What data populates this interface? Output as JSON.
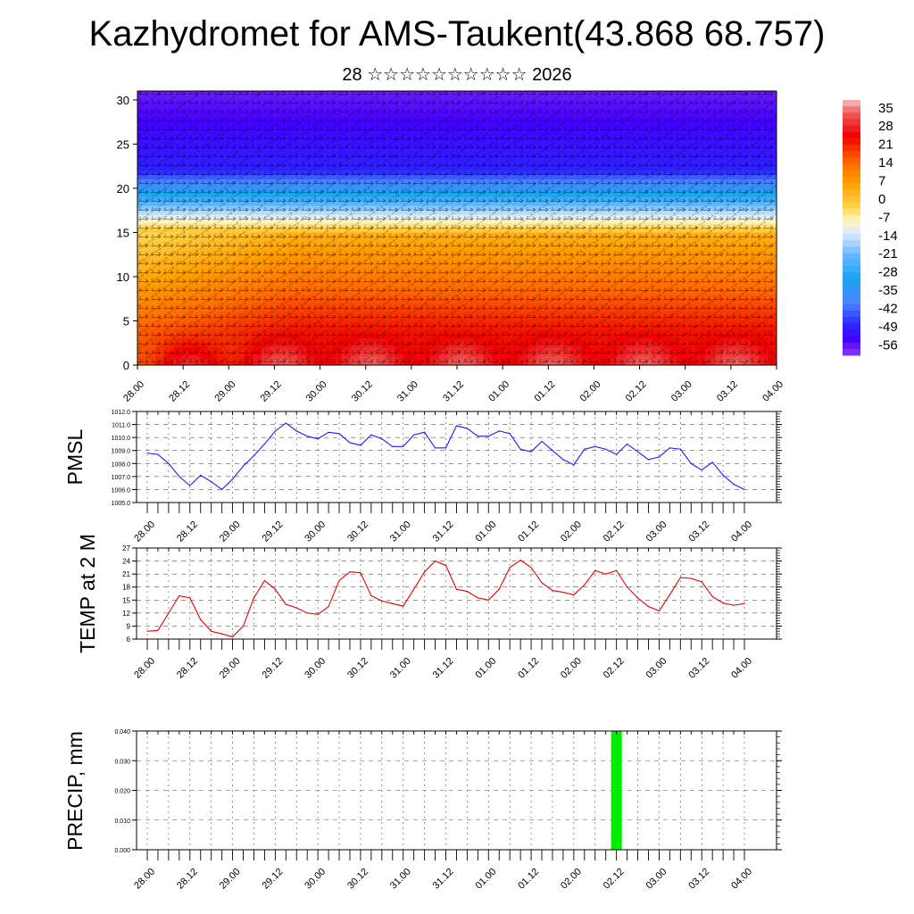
{
  "title": "Kazhydromet for AMS-Taukent(43.868 68.757)",
  "subtitle": "28 ☆☆☆☆☆☆☆☆☆☆ 2026",
  "time_labels": [
    "28.00",
    "28.12",
    "29.00",
    "29.12",
    "30.00",
    "30.12",
    "31.00",
    "31.12",
    "01.00",
    "01.12",
    "02.00",
    "02.12",
    "03.00",
    "03.12",
    "04.00"
  ],
  "colors": {
    "pmsl_line": "#1a1aff",
    "temp_line": "#e60000",
    "precip_bar": "#00ee00",
    "grid": "#555555"
  },
  "chart_data": [
    {
      "type": "heatmap",
      "name": "temperature-wind-cross-section",
      "ylim": [
        0,
        31
      ],
      "yticks": [
        0,
        5,
        10,
        15,
        20,
        25,
        30
      ],
      "colorbar_labels": [
        "35",
        "28",
        "21",
        "14",
        "7",
        "0",
        "-7",
        "-14",
        "-21",
        "-28",
        "-35",
        "-42",
        "-49",
        "-56"
      ],
      "colorbar_range": [
        -60,
        38
      ],
      "colorbar_stops": [
        {
          "value": 38,
          "color": "#f4c4c8"
        },
        {
          "value": 33,
          "color": "#ee5a5a"
        },
        {
          "value": 24,
          "color": "#f00000"
        },
        {
          "value": 14,
          "color": "#ff6a00"
        },
        {
          "value": 6,
          "color": "#ffa000"
        },
        {
          "value": -3,
          "color": "#ffd24a"
        },
        {
          "value": -8,
          "color": "#fff5b8"
        },
        {
          "value": -13,
          "color": "#dcecff"
        },
        {
          "value": -22,
          "color": "#62b8ff"
        },
        {
          "value": -30,
          "color": "#1aa6f0"
        },
        {
          "value": -40,
          "color": "#4a86ff"
        },
        {
          "value": -48,
          "color": "#2a2aff"
        },
        {
          "value": -54,
          "color": "#4400ff"
        },
        {
          "value": -60,
          "color": "#8a3af0"
        }
      ]
    },
    {
      "type": "line",
      "name": "pmsl",
      "ylabel": "PMSL",
      "ylim": [
        1005,
        1012
      ],
      "yticks": [
        "1005.0",
        "1006.0",
        "1007.0",
        "1008.0",
        "1009.0",
        "1010.0",
        "1011.0",
        "1012.0"
      ],
      "x_hours": [
        0,
        3,
        6,
        9,
        12,
        15,
        18,
        21,
        24,
        27,
        30,
        33,
        36,
        39,
        42,
        45,
        48,
        51,
        54,
        57,
        60,
        63,
        66,
        69,
        72,
        75,
        78,
        81,
        84,
        87,
        90,
        93,
        96,
        99,
        102,
        105,
        108,
        111,
        114,
        117,
        120,
        123,
        126,
        129,
        132,
        135,
        138,
        141,
        144,
        147,
        150,
        153,
        156,
        159,
        162,
        165,
        168
      ],
      "values": [
        1008.8,
        1008.7,
        1008.0,
        1007.0,
        1006.3,
        1007.1,
        1006.6,
        1006.0,
        1006.8,
        1007.8,
        1008.6,
        1009.5,
        1010.5,
        1011.1,
        1010.5,
        1010.1,
        1009.9,
        1010.4,
        1010.3,
        1009.6,
        1009.4,
        1010.2,
        1009.9,
        1009.3,
        1009.3,
        1010.2,
        1010.4,
        1009.2,
        1009.2,
        1010.9,
        1010.7,
        1010.1,
        1010.1,
        1010.5,
        1010.3,
        1009.1,
        1008.9,
        1009.7,
        1009.0,
        1008.3,
        1007.9,
        1009.1,
        1009.3,
        1009.1,
        1008.7,
        1009.5,
        1008.9,
        1008.3,
        1008.5,
        1009.2,
        1009.1,
        1008.0,
        1007.5,
        1008.1,
        1007.1,
        1006.4,
        1006.0
      ]
    },
    {
      "type": "line",
      "name": "temp",
      "ylabel": "TEMP at 2 M",
      "ylim": [
        6,
        27
      ],
      "yticks": [
        "6",
        "9",
        "12",
        "15",
        "18",
        "21",
        "24",
        "27"
      ],
      "x_hours": [
        0,
        3,
        6,
        9,
        12,
        15,
        18,
        21,
        24,
        27,
        30,
        33,
        36,
        39,
        42,
        45,
        48,
        51,
        54,
        57,
        60,
        63,
        66,
        69,
        72,
        75,
        78,
        81,
        84,
        87,
        90,
        93,
        96,
        99,
        102,
        105,
        108,
        111,
        114,
        117,
        120,
        123,
        126,
        129,
        132,
        135,
        138,
        141,
        144,
        147,
        150,
        153,
        156,
        159,
        162,
        165,
        168
      ],
      "values": [
        7.8,
        8.0,
        12.0,
        16.0,
        15.5,
        10.5,
        7.8,
        7.2,
        6.5,
        9.0,
        15.5,
        19.5,
        17.5,
        14.0,
        13.2,
        12.0,
        11.7,
        13.5,
        19.5,
        21.5,
        21.3,
        16.0,
        14.8,
        14.2,
        13.6,
        17.5,
        21.5,
        24.0,
        23.0,
        17.5,
        17.0,
        15.5,
        15.0,
        17.5,
        22.5,
        24.2,
        22.5,
        19.0,
        17.2,
        16.8,
        16.2,
        18.5,
        21.8,
        21.0,
        21.8,
        18.0,
        15.5,
        13.5,
        12.5,
        16.2,
        20.2,
        20.0,
        19.2,
        15.8,
        14.3,
        13.8,
        14.2
      ]
    },
    {
      "type": "bar",
      "name": "precip",
      "ylabel": "PRECIP, mm",
      "ylim": [
        0,
        0.04
      ],
      "yticks": [
        "0.000",
        "0.010",
        "0.020",
        "0.030",
        "0.040"
      ],
      "x_hours": [
        132
      ],
      "values": [
        0.04
      ]
    }
  ]
}
